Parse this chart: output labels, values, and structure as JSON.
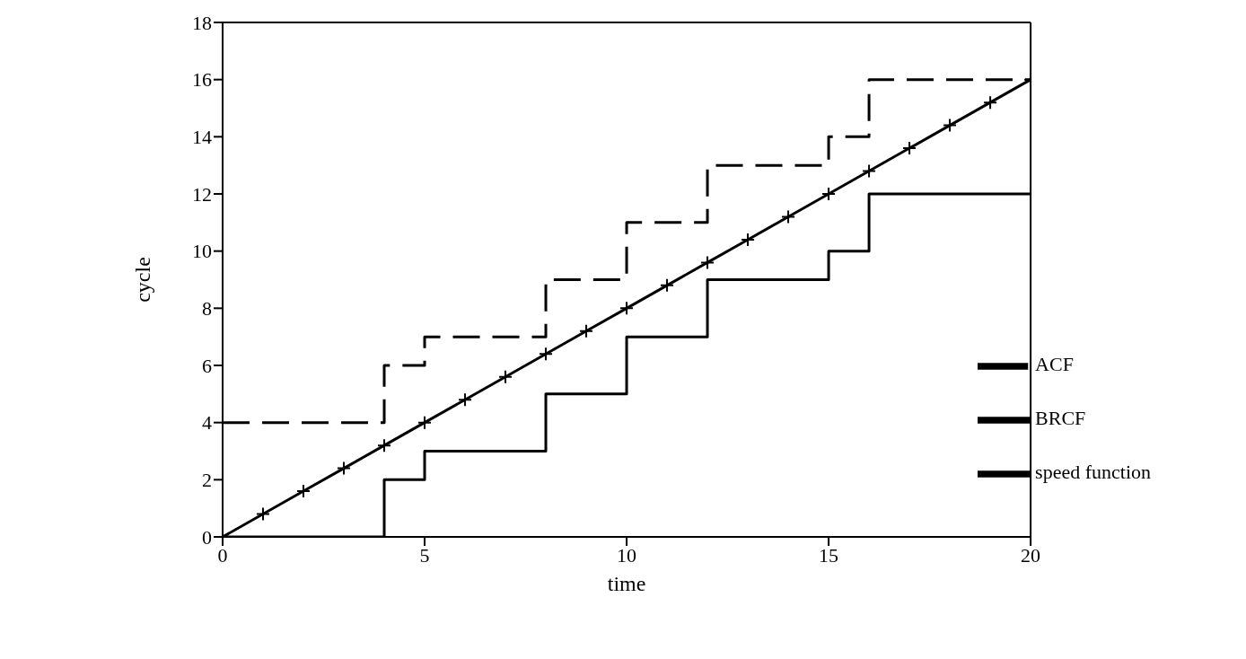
{
  "chart_data": {
    "type": "step",
    "xlabel": "time",
    "ylabel": "cycle",
    "xlim": [
      0,
      20
    ],
    "ylim": [
      0,
      18
    ],
    "xticks": [
      0,
      5,
      10,
      15,
      20
    ],
    "yticks": [
      0,
      2,
      4,
      6,
      8,
      10,
      12,
      14,
      16,
      18
    ],
    "grid": false,
    "legend": "bottom right",
    "series": [
      {
        "name": "ACF",
        "color": "#000000",
        "line_style": "dashed",
        "marker": "none",
        "x": [
          0,
          4,
          5,
          8,
          10,
          12,
          15,
          16,
          20
        ],
        "values": [
          4,
          6,
          7,
          9,
          11,
          13,
          14,
          16,
          16
        ]
      },
      {
        "name": "BRCF",
        "color": "#000000",
        "line_style": "solid",
        "marker": "none",
        "x": [
          0,
          4,
          5,
          8,
          10,
          12,
          15,
          16,
          20
        ],
        "values": [
          0,
          2,
          3,
          5,
          7,
          9,
          10,
          12,
          12
        ]
      },
      {
        "name": "speed function",
        "type": "line",
        "color": "#000000",
        "line_style": "solid",
        "marker": "cross",
        "x": [
          0,
          1,
          2,
          3,
          4,
          5,
          6,
          7,
          8,
          9,
          10,
          11,
          12,
          13,
          14,
          15,
          16,
          17,
          18,
          19,
          20
        ],
        "values": [
          0,
          0.8,
          1.6,
          2.4,
          3.2,
          4,
          4.8,
          5.6,
          6.4,
          7.2,
          8,
          8.8,
          9.6,
          10.4,
          11.2,
          12,
          12.8,
          13.6,
          14.4,
          15.2,
          16
        ]
      }
    ]
  }
}
